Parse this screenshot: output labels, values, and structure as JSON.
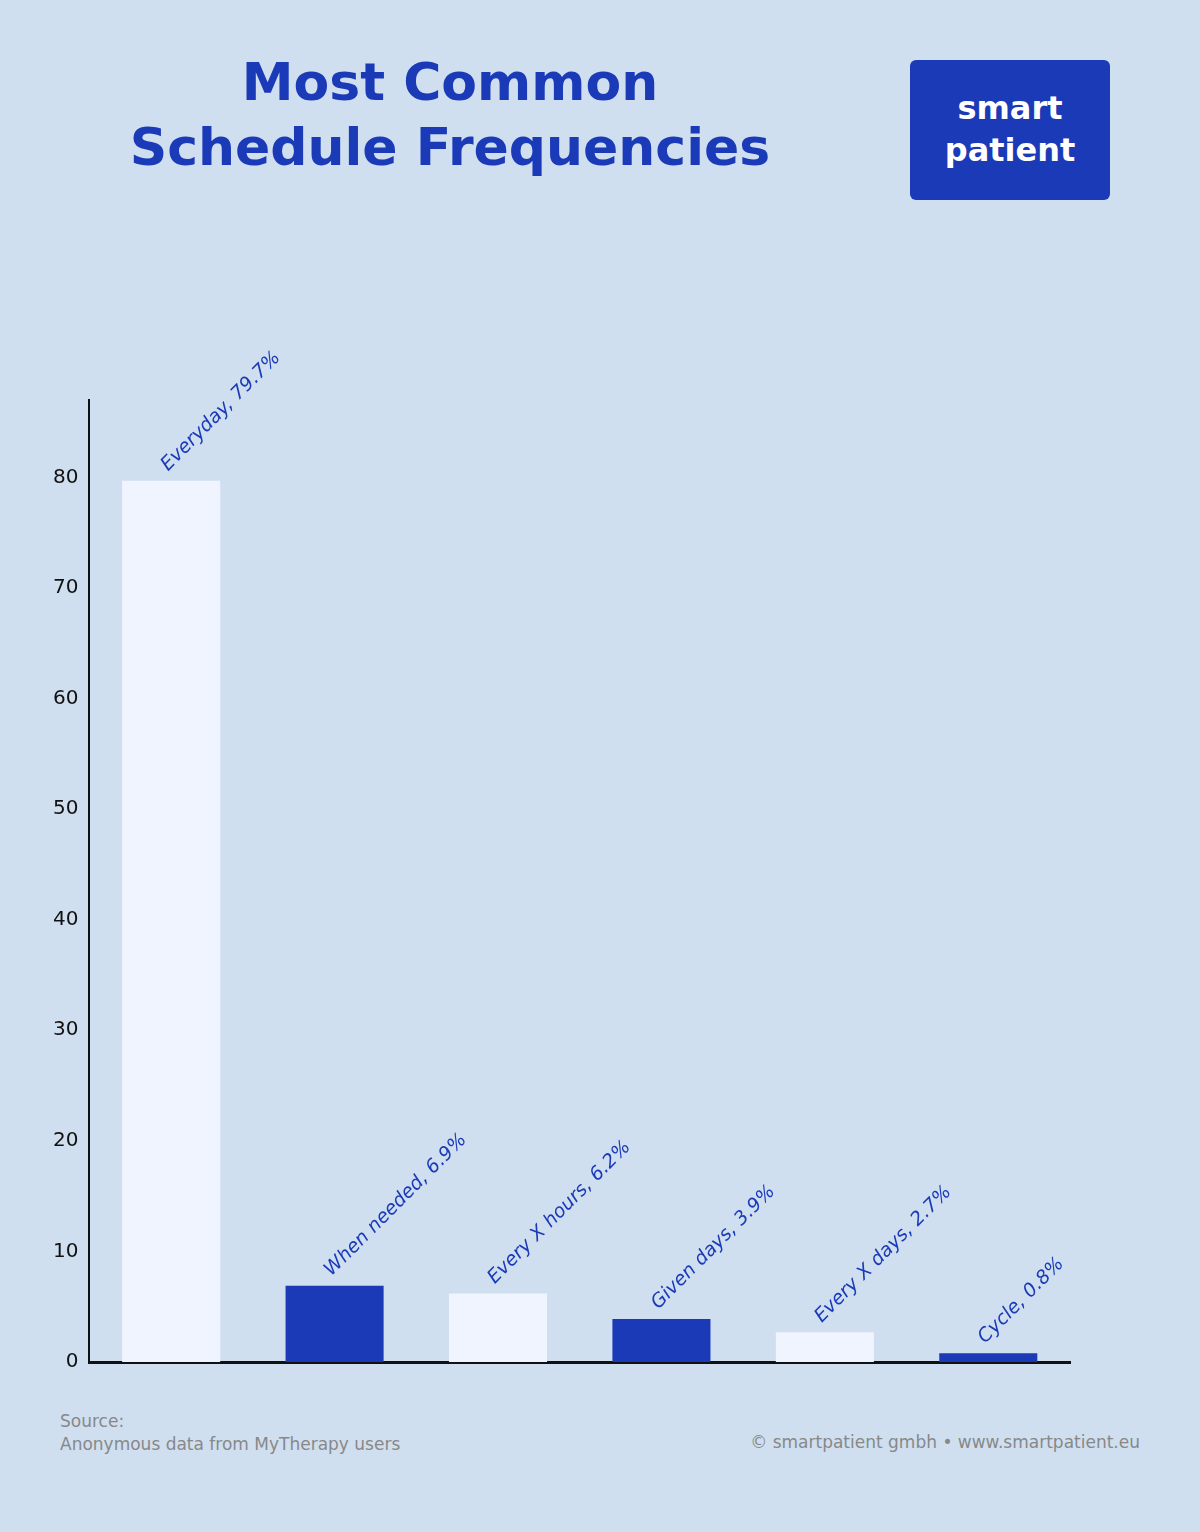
{
  "chart_data": {
    "type": "bar",
    "title": "Most Common\nSchedule Frequencies",
    "categories": [
      "Everyday",
      "When needed",
      "Every X hours",
      "Given days",
      "Every X days",
      "Cycle"
    ],
    "values": [
      79.7,
      6.9,
      6.2,
      3.9,
      2.7,
      0.8
    ],
    "value_labels": [
      "Everyday, 79.7%",
      "When needed, 6.9%",
      "Every X hours, 6.2%",
      "Given days, 3.9%",
      "Every X days, 2.7%",
      "Cycle, 0.8%"
    ],
    "data_labels": true,
    "colors": [
      "#f0f4ff",
      "#1a3ab8",
      "#f0f4ff",
      "#1a3ab8",
      "#f0f4ff",
      "#1a3ab8"
    ],
    "ylim": [
      0,
      87
    ],
    "yticks": [
      0,
      10,
      20,
      30,
      40,
      50,
      60,
      70,
      80
    ],
    "grid": false,
    "tick_labels": "y",
    "annotations": [
      "smart\npatient",
      "Source:\nAnonymous data from MyTherapy users",
      "© smartpatient gmbh • www.smartpatient.eu"
    ]
  }
}
